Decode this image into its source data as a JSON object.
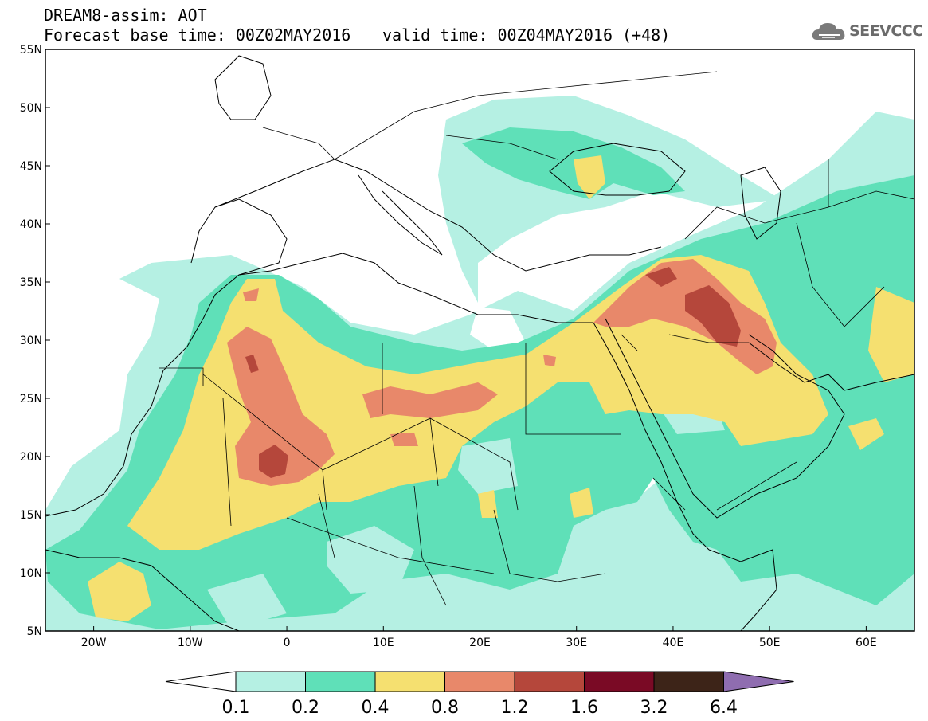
{
  "header": {
    "title": "DREAM8-assim: AOT",
    "base_time": "Forecast base time: 00Z02MAY2016",
    "valid_time": "valid time: 00Z04MAY2016 (+48)"
  },
  "logo": {
    "text": "SEEVCCC",
    "icon": "cloud-icon"
  },
  "map": {
    "lat_labels": [
      "55N",
      "50N",
      "45N",
      "40N",
      "35N",
      "30N",
      "25N",
      "20N",
      "15N",
      "10N",
      "5N"
    ],
    "lon_labels": [
      "20W",
      "10W",
      "0",
      "10E",
      "20E",
      "30E",
      "40E",
      "50E",
      "60E"
    ],
    "lon_range": [
      -25,
      65
    ],
    "lat_range": [
      5,
      55
    ]
  },
  "colorbar": {
    "levels": [
      "0.1",
      "0.2",
      "0.4",
      "0.8",
      "1.2",
      "1.6",
      "3.2",
      "6.4"
    ],
    "colors": [
      "#b5f0e3",
      "#5fe0b8",
      "#f5e070",
      "#e8886a",
      "#b5473b",
      "#7a0a25",
      "#3d2418",
      "#8f6db0"
    ],
    "under_color": "#ffffff"
  },
  "legend_colors": {
    "0.1-0.2": "#b5f0e3",
    "0.2-0.4": "#5fe0b8",
    "0.4-0.8": "#f5e070",
    "0.8-1.2": "#e8886a",
    "1.2-1.6": "#b5473b"
  }
}
